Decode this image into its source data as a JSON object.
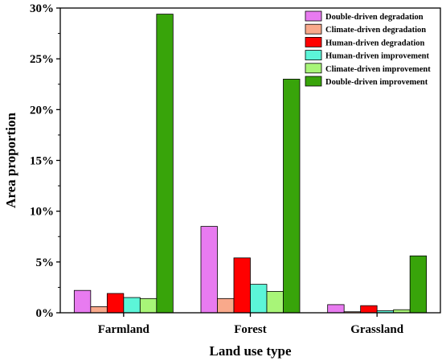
{
  "chart_data": {
    "type": "bar",
    "xlabel": "Land use type",
    "ylabel": "Area proportion",
    "categories": [
      "Farmland",
      "Forest",
      "Grassland"
    ],
    "ylim": [
      0,
      30
    ],
    "yticks": [
      0,
      5,
      10,
      15,
      20,
      25,
      30
    ],
    "ytick_labels": [
      "0%",
      "5%",
      "10%",
      "15%",
      "20%",
      "25%",
      "30%"
    ],
    "grid": false,
    "legend_position": "top-right",
    "series": [
      {
        "name": "Double-driven degradation",
        "color": "#e87bf0",
        "values": [
          2.2,
          8.5,
          0.8
        ]
      },
      {
        "name": "Climate-driven degradation",
        "color": "#f9a98b",
        "values": [
          0.6,
          1.4,
          0.1
        ]
      },
      {
        "name": "Human-driven degradation",
        "color": "#ff0000",
        "values": [
          1.9,
          5.4,
          0.7
        ]
      },
      {
        "name": "Human-driven improvement",
        "color": "#5cf5d8",
        "values": [
          1.5,
          2.8,
          0.2
        ]
      },
      {
        "name": "Climate-driven improvement",
        "color": "#a8f578",
        "values": [
          1.4,
          2.1,
          0.3
        ]
      },
      {
        "name": "Double-driven improvement",
        "color": "#38a40a",
        "values": [
          29.4,
          23.0,
          5.6
        ]
      }
    ]
  }
}
